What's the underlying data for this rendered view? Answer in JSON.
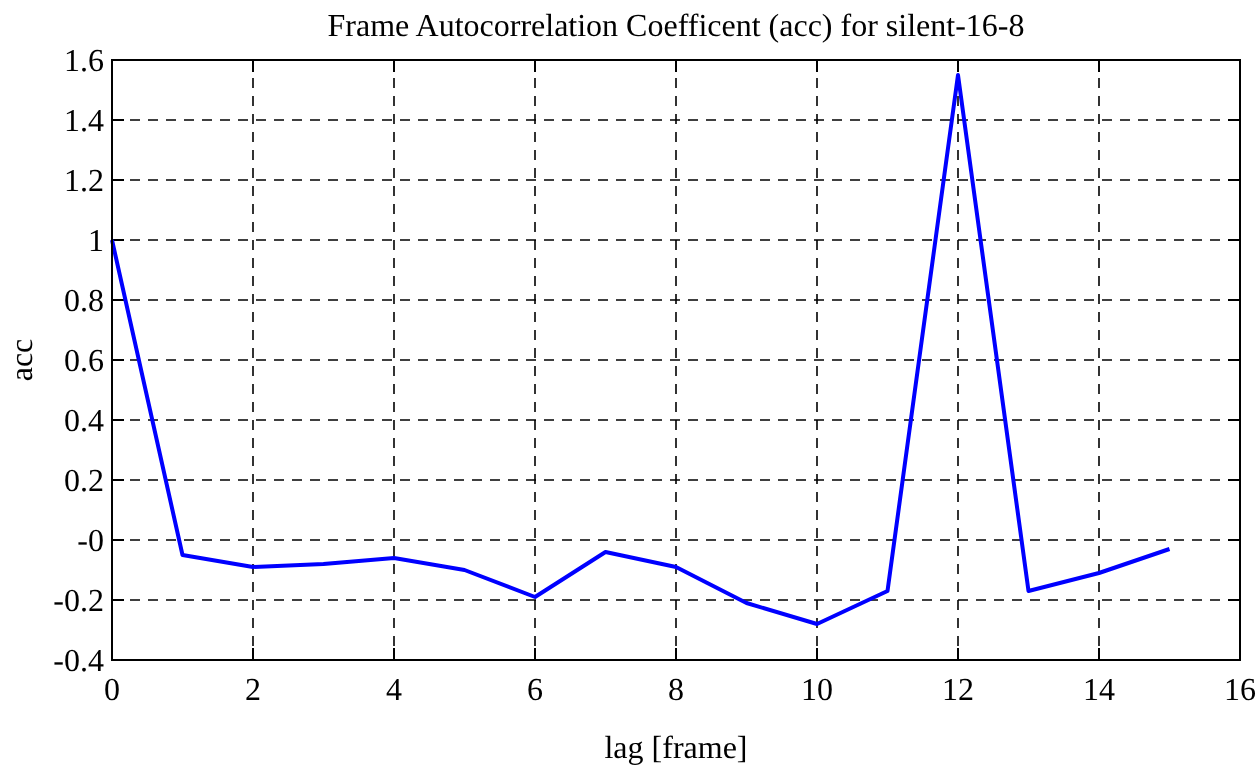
{
  "chart_data": {
    "type": "line",
    "title": "Frame Autocorrelation Coefficent (acc) for silent-16-8",
    "xlabel": "lag [frame]",
    "ylabel": "acc",
    "x": [
      0,
      1,
      2,
      3,
      4,
      5,
      6,
      7,
      8,
      9,
      10,
      11,
      12,
      13,
      14,
      15
    ],
    "series": [
      {
        "color": "#0000ff",
        "values": [
          1.0,
          -0.05,
          -0.09,
          -0.08,
          -0.06,
          -0.1,
          -0.19,
          -0.04,
          -0.09,
          -0.21,
          -0.28,
          -0.17,
          1.55,
          -0.17,
          -0.11,
          -0.03
        ]
      }
    ],
    "xlim": [
      0,
      16
    ],
    "xticks": [
      0,
      2,
      4,
      6,
      8,
      10,
      12,
      14,
      16
    ],
    "ylim": [
      -0.4,
      1.6
    ],
    "yticks": [
      -0.4,
      -0.2,
      {
        "value": 0,
        "label": "-0"
      },
      0.2,
      0.4,
      0.6,
      0.8,
      1,
      1.2,
      1.4,
      1.6
    ],
    "grid": true,
    "marker": "none",
    "line_style": "solid"
  }
}
